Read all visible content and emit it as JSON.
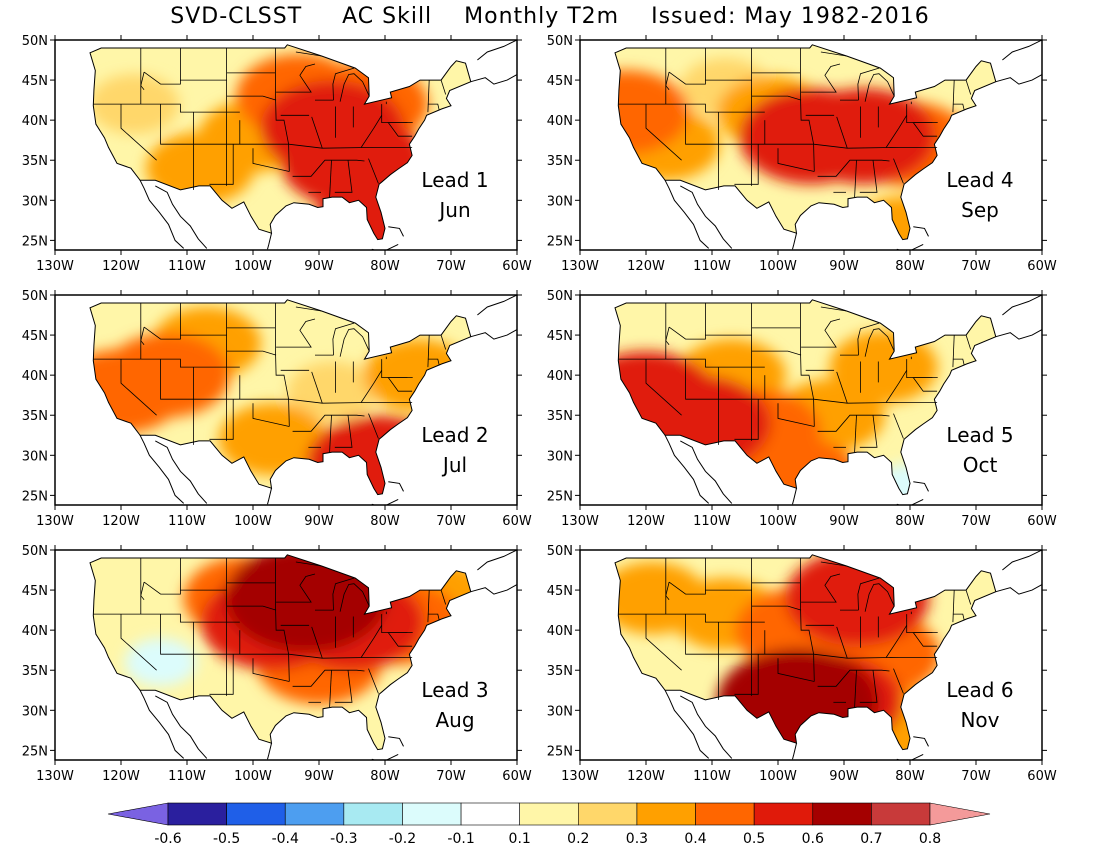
{
  "title": {
    "method": "SVD-CLSST",
    "metric": "AC Skill",
    "variable": "Monthly T2m",
    "issued": "Issued: May 1982-2016"
  },
  "axes": {
    "lat_labels": [
      "50N",
      "45N",
      "40N",
      "35N",
      "30N",
      "25N"
    ],
    "lon_labels": [
      "130W",
      "120W",
      "110W",
      "100W",
      "90W",
      "80W",
      "70W",
      "60W"
    ]
  },
  "panels": [
    {
      "lead_label": "Lead 1",
      "month": "Jun",
      "hotspots": [
        {
          "lon": -88,
          "lat": 39,
          "level": 5
        },
        {
          "lon": -85,
          "lat": 35,
          "level": 5
        },
        {
          "lon": -93,
          "lat": 43,
          "level": 4
        },
        {
          "lon": -80,
          "lat": 27,
          "level": 5
        },
        {
          "lon": -108,
          "lat": 34,
          "level": 3
        },
        {
          "lon": -118,
          "lat": 42,
          "level": 2
        },
        {
          "lon": -83,
          "lat": 42,
          "level": 4
        },
        {
          "lon": -100,
          "lat": 38,
          "level": 3
        }
      ]
    },
    {
      "lead_label": "Lead 2",
      "month": "Jul",
      "hotspots": [
        {
          "lon": -113,
          "lat": 40,
          "level": 4
        },
        {
          "lon": -120,
          "lat": 38,
          "level": 4
        },
        {
          "lon": -81,
          "lat": 29,
          "level": 5
        },
        {
          "lon": -97,
          "lat": 32,
          "level": 3
        },
        {
          "lon": -107,
          "lat": 44,
          "level": 3
        },
        {
          "lon": -75,
          "lat": 40,
          "level": 3
        },
        {
          "lon": -88,
          "lat": 38,
          "level": 2
        }
      ]
    },
    {
      "lead_label": "Lead 3",
      "month": "Aug",
      "hotspots": [
        {
          "lon": -92,
          "lat": 44,
          "level": 6
        },
        {
          "lon": -97,
          "lat": 41,
          "level": 5
        },
        {
          "lon": -85,
          "lat": 41,
          "level": 5
        },
        {
          "lon": -78,
          "lat": 41,
          "level": 4
        },
        {
          "lon": -90,
          "lat": 36,
          "level": 4
        },
        {
          "lon": -101,
          "lat": 44,
          "level": 4
        },
        {
          "lon": -72,
          "lat": 44,
          "level": 3
        },
        {
          "lon": -114,
          "lat": 36,
          "level": -1
        }
      ]
    },
    {
      "lead_label": "Lead 4",
      "month": "Sep",
      "hotspots": [
        {
          "lon": -95,
          "lat": 38,
          "level": 5
        },
        {
          "lon": -87,
          "lat": 38,
          "level": 5
        },
        {
          "lon": -123,
          "lat": 41,
          "level": 4
        },
        {
          "lon": -117,
          "lat": 37,
          "level": 3
        },
        {
          "lon": -80,
          "lat": 37,
          "level": 4
        },
        {
          "lon": -101,
          "lat": 41,
          "level": 3
        },
        {
          "lon": -108,
          "lat": 44,
          "level": 2
        },
        {
          "lon": -81,
          "lat": 26,
          "level": 3
        }
      ]
    },
    {
      "lead_label": "Lead 5",
      "month": "Oct",
      "hotspots": [
        {
          "lon": -120,
          "lat": 37,
          "level": 5
        },
        {
          "lon": -112,
          "lat": 34,
          "level": 5
        },
        {
          "lon": -103,
          "lat": 33,
          "level": 4
        },
        {
          "lon": -92,
          "lat": 35,
          "level": 3
        },
        {
          "lon": -97,
          "lat": 27,
          "level": 4
        },
        {
          "lon": -84,
          "lat": 41,
          "level": 3
        },
        {
          "lon": -107,
          "lat": 40,
          "level": 3
        },
        {
          "lon": -80,
          "lat": 26,
          "level": -1
        }
      ]
    },
    {
      "lead_label": "Lead 6",
      "month": "Nov",
      "hotspots": [
        {
          "lon": -97,
          "lat": 31,
          "level": 6
        },
        {
          "lon": -92,
          "lat": 31,
          "level": 5
        },
        {
          "lon": -88,
          "lat": 44,
          "level": 5
        },
        {
          "lon": -97,
          "lat": 40,
          "level": 4
        },
        {
          "lon": -85,
          "lat": 37,
          "level": 4
        },
        {
          "lon": -108,
          "lat": 42,
          "level": 3
        },
        {
          "lon": -119,
          "lat": 44,
          "level": 3
        },
        {
          "lon": -80,
          "lat": 28,
          "level": 3
        }
      ]
    }
  ],
  "colorbar": {
    "labels": [
      "-0.6",
      "-0.5",
      "-0.4",
      "-0.3",
      "-0.2",
      "-0.1",
      "0.1",
      "0.2",
      "0.3",
      "0.4",
      "0.5",
      "0.6",
      "0.7",
      "0.8"
    ],
    "colors": [
      "#7a62e2",
      "#2a1f9e",
      "#1f5fe8",
      "#4d9ef0",
      "#a8eaf2",
      "#dcfcfc",
      "#ffffff",
      "#fff6a8",
      "#ffd76a",
      "#ffa000",
      "#ff6600",
      "#e01a0a",
      "#a40000",
      "#c83a3a",
      "#f49a9a"
    ]
  },
  "colors": {
    "level_fill": {
      "-1": "#dcfcfc",
      "1": "#fff6a8",
      "2": "#ffd76a",
      "3": "#ffa000",
      "4": "#ff6600",
      "5": "#e01a0a",
      "6": "#a40000"
    }
  }
}
